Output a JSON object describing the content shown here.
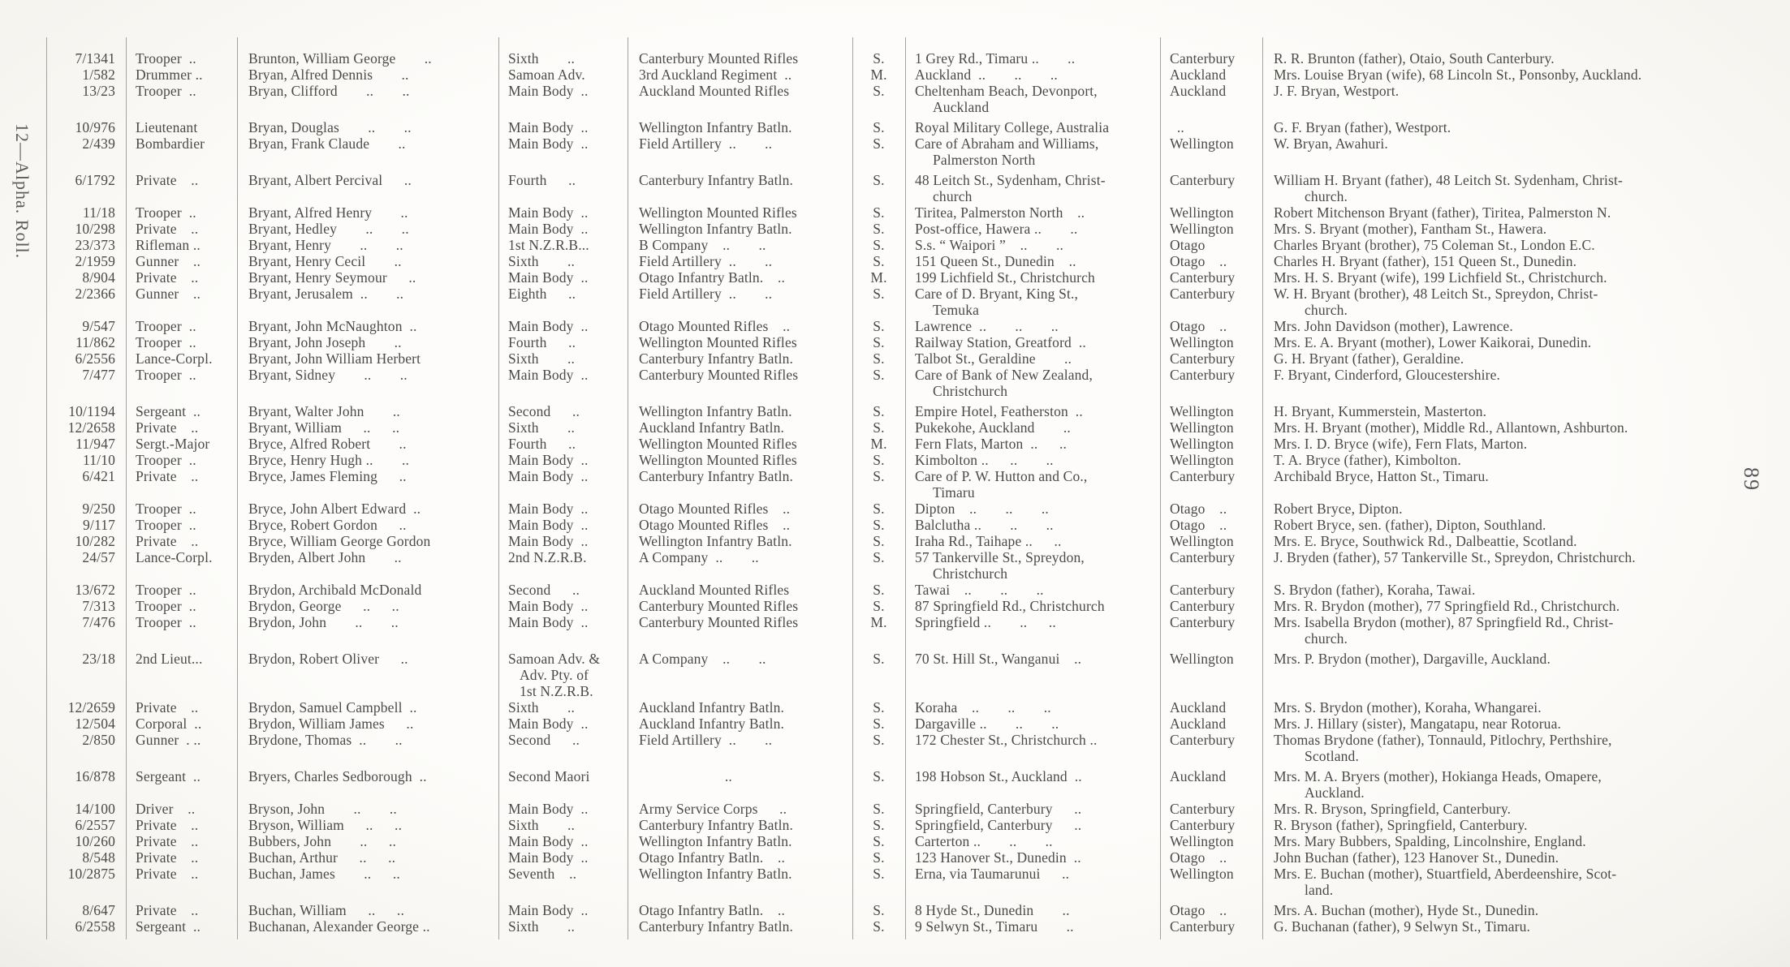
{
  "page": {
    "margin_label": "12—Alpha. Roll.",
    "page_number": "89",
    "colors": {
      "paper": "#fdfcfa",
      "ink": "#4a4a49",
      "rule": "#a3a3a0"
    }
  },
  "table": {
    "columns": [
      "number",
      "rank",
      "name",
      "draft",
      "unit",
      "status",
      "address",
      "district",
      "next_of_kin"
    ],
    "rows": [
      {
        "number": "7/1341",
        "rank": "Trooper ..",
        "name": "Brunton, William George  ..",
        "draft": "Sixth  ..",
        "unit": "Canterbury Mounted Rifles",
        "status": "S.",
        "address": "1 Grey Rd., Timaru ..  ..",
        "district": "Canterbury",
        "next_of_kin": "R. R. Brunton (father), Otaio, South Canterbury."
      },
      {
        "number": "1/582",
        "rank": "Drummer ..",
        "name": "Bryan, Alfred Dennis  ..",
        "draft": "Samoan Adv.",
        "unit": "3rd Auckland Regiment ..",
        "status": "M.",
        "address": "Auckland ..  ..  ..",
        "district": "Auckland",
        "next_of_kin": "Mrs. Louise Bryan (wife), 68 Lincoln St., Ponsonby, Auckland."
      },
      {
        "number": "13/23",
        "rank": "Trooper ..",
        "name": "Bryan, Clifford  ..  ..",
        "draft": "Main Body ..",
        "unit": "Auckland Mounted Rifles",
        "status": "S.",
        "address": "Cheltenham Beach, Devonport,\nAuckland",
        "district": "Auckland",
        "next_of_kin": "J. F. Bryan, Westport."
      },
      {
        "number": "10/976",
        "rank": "Lieutenant",
        "name": "Bryan, Douglas  ..  ..",
        "draft": "Main Body ..",
        "unit": "Wellington Infantry Batln.",
        "status": "S.",
        "address": "Royal Military College, Australia",
        "district": " ..",
        "next_of_kin": "G. F. Bryan (father), Westport.",
        "gap_before": true
      },
      {
        "number": "2/439",
        "rank": "Bombardier",
        "name": "Bryan, Frank Claude  ..",
        "draft": "Main Body ..",
        "unit": "Field Artillery ..  ..",
        "status": "S.",
        "address": "Care of Abraham and Williams,\nPalmerston North",
        "district": "Wellington",
        "next_of_kin": "W. Bryan, Awahuri."
      },
      {
        "number": "6/1792",
        "rank": "Private ..",
        "name": "Bryant, Albert Percival  ..",
        "draft": "Fourth  ..",
        "unit": "Canterbury Infantry Batln.",
        "status": "S.",
        "address": "48 Leitch St., Sydenham, Christ-\nchurch",
        "district": "Canterbury",
        "next_of_kin": "William H. Bryant (father), 48 Leitch St. Sydenham, Christ-\nchurch.",
        "gap_before": true
      },
      {
        "number": "11/18",
        "rank": "Trooper ..",
        "name": "Bryant, Alfred Henry  ..",
        "draft": "Main Body ..",
        "unit": "Wellington Mounted Rifles",
        "status": "S.",
        "address": "Tiritea, Palmerston North ..",
        "district": "Wellington",
        "next_of_kin": "Robert Mitchenson Bryant (father), Tiritea, Palmerston N."
      },
      {
        "number": "10/298",
        "rank": "Private ..",
        "name": "Bryant, Hedley  ..  ..",
        "draft": "Main Body ..",
        "unit": "Wellington Infantry Batln.",
        "status": "S.",
        "address": "Post-office, Hawera ..  ..",
        "district": "Wellington",
        "next_of_kin": "Mrs. S. Bryant (mother), Fantham St., Hawera."
      },
      {
        "number": "23/373",
        "rank": "Rifleman ..",
        "name": "Bryant, Henry  ..  ..",
        "draft": "1st N.Z.R.B...",
        "unit": "B Company ..  ..",
        "status": "S.",
        "address": "S.s. “ Waipori ” ..  ..",
        "district": "Otago",
        "next_of_kin": "Charles Bryant (brother), 75 Coleman St., London E.C."
      },
      {
        "number": "2/1959",
        "rank": "Gunner ..",
        "name": "Bryant, Henry Cecil  ..",
        "draft": "Sixth  ..",
        "unit": "Field Artillery ..  ..",
        "status": "S.",
        "address": "151 Queen St., Dunedin ..",
        "district": "Otago ..",
        "next_of_kin": "Charles H. Bryant (father), 151 Queen St., Dunedin."
      },
      {
        "number": "8/904",
        "rank": "Private ..",
        "name": "Bryant, Henry Seymour  ..",
        "draft": "Main Body ..",
        "unit": "Otago Infantry Batln. ..",
        "status": "M.",
        "address": "199 Lichfield St., Christchurch",
        "district": "Canterbury",
        "next_of_kin": "Mrs. H. S. Bryant (wife), 199 Lichfield St., Christchurch."
      },
      {
        "number": "2/2366",
        "rank": "Gunner ..",
        "name": "Bryant, Jerusalem ..  ..",
        "draft": "Eighth  ..",
        "unit": "Field Artillery ..  ..",
        "status": "S.",
        "address": "Care of D. Bryant, King St.,\nTemuka",
        "district": "Canterbury",
        "next_of_kin": "W. H. Bryant (brother), 48 Leitch St., Spreydon, Christ-\nchurch."
      },
      {
        "number": "9/547",
        "rank": "Trooper ..",
        "name": "Bryant, John McNaughton ..",
        "draft": "Main Body ..",
        "unit": "Otago Mounted Rifles ..",
        "status": "S.",
        "address": "Lawrence ..  ..  ..",
        "district": "Otago ..",
        "next_of_kin": "Mrs. John Davidson (mother), Lawrence."
      },
      {
        "number": "11/862",
        "rank": "Trooper ..",
        "name": "Bryant, John Joseph  ..",
        "draft": "Fourth  ..",
        "unit": "Wellington Mounted Rifles",
        "status": "S.",
        "address": "Railway Station, Greatford ..",
        "district": "Wellington",
        "next_of_kin": "Mrs. E. A. Bryant (mother), Lower Kaikorai, Dunedin."
      },
      {
        "number": "6/2556",
        "rank": "Lance-Corpl.",
        "name": "Bryant, John William Herbert",
        "draft": "Sixth  ..",
        "unit": "Canterbury Infantry Batln.",
        "status": "S.",
        "address": "Talbot St., Geraldine  ..",
        "district": "Canterbury",
        "next_of_kin": "G. H. Bryant (father), Geraldine."
      },
      {
        "number": "7/477",
        "rank": "Trooper ..",
        "name": "Bryant, Sidney  ..  ..",
        "draft": "Main Body ..",
        "unit": "Canterbury Mounted Rifles",
        "status": "S.",
        "address": "Care of Bank of New Zealand,\nChristchurch",
        "district": "Canterbury",
        "next_of_kin": "F. Bryant, Cinderford, Gloucestershire."
      },
      {
        "number": "10/1194",
        "rank": "Sergeant ..",
        "name": "Bryant, Walter John  ..",
        "draft": "Second  ..",
        "unit": "Wellington Infantry Batln.",
        "status": "S.",
        "address": "Empire Hotel, Featherston ..",
        "district": "Wellington",
        "next_of_kin": "H. Bryant, Kummerstein, Masterton.",
        "gap_before": true
      },
      {
        "number": "12/2658",
        "rank": "Private ..",
        "name": "Bryant, William  ..  ..",
        "draft": "Sixth  ..",
        "unit": "Auckland Infantry Batln.",
        "status": "S.",
        "address": "Pukekohe, Auckland  ..",
        "district": "Wellington",
        "next_of_kin": "Mrs. H. Bryant (mother), Middle Rd., Allantown, Ashburton."
      },
      {
        "number": "11/947",
        "rank": "Sergt.-Major",
        "name": "Bryce, Alfred Robert  ..",
        "draft": "Fourth  ..",
        "unit": "Wellington Mounted Rifles",
        "status": "M.",
        "address": "Fern Flats, Marton ..  ..",
        "district": "Wellington",
        "next_of_kin": "Mrs. I. D. Bryce (wife), Fern Flats, Marton."
      },
      {
        "number": "11/10",
        "rank": "Trooper ..",
        "name": "Bryce, Henry Hugh ..  ..",
        "draft": "Main Body ..",
        "unit": "Wellington Mounted Rifles",
        "status": "S.",
        "address": "Kimbolton ..  ..  ..",
        "district": "Wellington",
        "next_of_kin": "T. A. Bryce (father), Kimbolton."
      },
      {
        "number": "6/421",
        "rank": "Private ..",
        "name": "Bryce, James Fleming  ..",
        "draft": "Main Body ..",
        "unit": "Canterbury Infantry Batln.",
        "status": "S.",
        "address": "Care of P. W. Hutton and Co.,\nTimaru",
        "district": "Canterbury",
        "next_of_kin": "Archibald Bryce, Hatton St., Timaru."
      },
      {
        "number": "9/250",
        "rank": "Trooper ..",
        "name": "Bryce, John Albert Edward ..",
        "draft": "Main Body ..",
        "unit": "Otago Mounted Rifles ..",
        "status": "S.",
        "address": "Dipton ..  ..  ..",
        "district": "Otago ..",
        "next_of_kin": "Robert Bryce, Dipton."
      },
      {
        "number": "9/117",
        "rank": "Trooper ..",
        "name": "Bryce, Robert Gordon  ..",
        "draft": "Main Body ..",
        "unit": "Otago Mounted Rifles ..",
        "status": "S.",
        "address": "Balclutha ..  ..  ..",
        "district": "Otago ..",
        "next_of_kin": "Robert Bryce, sen. (father), Dipton, Southland."
      },
      {
        "number": "10/282",
        "rank": "Private ..",
        "name": "Bryce, William George Gordon",
        "draft": "Main Body ..",
        "unit": "Wellington Infantry Batln.",
        "status": "S.",
        "address": "Iraha Rd., Taihape ..  ..",
        "district": "Wellington",
        "next_of_kin": "Mrs. E. Bryce, Southwick Rd., Dalbeattie, Scotland."
      },
      {
        "number": "24/57",
        "rank": "Lance-Corpl.",
        "name": "Bryden, Albert John  ..",
        "draft": "2nd N.Z.R.B.",
        "unit": "A Company ..  ..",
        "status": "S.",
        "address": "57 Tankerville St., Spreydon,\nChristchurch",
        "district": "Canterbury",
        "next_of_kin": "J. Bryden (father), 57 Tankerville St., Spreydon, Christchurch."
      },
      {
        "number": "13/672",
        "rank": "Trooper ..",
        "name": "Brydon, Archibald McDonald",
        "draft": "Second  ..",
        "unit": "Auckland Mounted Rifles",
        "status": "S.",
        "address": "Tawai ..  ..  ..",
        "district": "Canterbury",
        "next_of_kin": "S. Brydon (father), Koraha, Tawai."
      },
      {
        "number": "7/313",
        "rank": "Trooper ..",
        "name": "Brydon, George  ..  ..",
        "draft": "Main Body ..",
        "unit": "Canterbury Mounted Rifles",
        "status": "S.",
        "address": "87 Springfield Rd., Christchurch",
        "district": "Canterbury",
        "next_of_kin": "Mrs. R. Brydon (mother), 77 Springfield Rd., Christchurch."
      },
      {
        "number": "7/476",
        "rank": "Trooper ..",
        "name": "Brydon, John  ..  ..",
        "draft": "Main Body ..",
        "unit": "Canterbury Mounted Rifles",
        "status": "M.",
        "address": "Springfield ..  ..  ..",
        "district": "Canterbury",
        "next_of_kin": "Mrs. Isabella Brydon (mother), 87 Springfield Rd., Christ-\nchurch."
      },
      {
        "number": "23/18",
        "rank": "2nd Lieut...",
        "name": "Brydon, Robert Oliver  ..",
        "draft": "Samoan Adv. &\nAdv. Pty. of\n1st N.Z.R.B.",
        "unit": "A Company ..  ..",
        "status": "S.",
        "address": "70 St. Hill St., Wanganui ..",
        "district": "Wellington",
        "next_of_kin": "Mrs. P. Brydon (mother), Dargaville, Auckland.",
        "gap_before": true
      },
      {
        "number": "12/2659",
        "rank": "Private ..",
        "name": "Brydon, Samuel Campbell ..",
        "draft": "Sixth  ..",
        "unit": "Auckland Infantry Batln.",
        "status": "S.",
        "address": "Koraha ..  ..  ..",
        "district": "Auckland",
        "next_of_kin": "Mrs. S. Brydon (mother), Koraha, Whangarei."
      },
      {
        "number": "12/504",
        "rank": "Corporal ..",
        "name": "Brydon, William James  ..",
        "draft": "Main Body ..",
        "unit": "Auckland Infantry Batln.",
        "status": "S.",
        "address": "Dargaville ..  ..  ..",
        "district": "Auckland",
        "next_of_kin": "Mrs. J. Hillary (sister), Mangatapu, near Rotorua."
      },
      {
        "number": "2/850",
        "rank": "Gunner . ..",
        "name": "Brydone, Thomas ..  ..",
        "draft": "Second  ..",
        "unit": "Field Artillery ..  ..",
        "status": "S.",
        "address": "172 Chester St., Christchurch ..",
        "district": "Canterbury",
        "next_of_kin": "Thomas Brydone (father), Tonnauld, Pitlochry, Perthshire,\nScotland."
      },
      {
        "number": "16/878",
        "rank": "Sergeant ..",
        "name": "Bryers, Charles Sedborough ..",
        "draft": "Second Maori",
        "unit": "      ..",
        "status": "S.",
        "address": "198 Hobson St., Auckland ..",
        "district": "Auckland",
        "next_of_kin": "Mrs. M. A. Bryers (mother), Hokianga Heads, Omapere,\nAuckland.",
        "gap_before": true
      },
      {
        "number": "14/100",
        "rank": "Driver ..",
        "name": "Bryson, John  ..  ..",
        "draft": "Main Body ..",
        "unit": "Army Service Corps  ..",
        "status": "S.",
        "address": "Springfield, Canterbury  ..",
        "district": "Canterbury",
        "next_of_kin": "Mrs. R. Bryson, Springfield, Canterbury."
      },
      {
        "number": "6/2557",
        "rank": "Private ..",
        "name": "Bryson, William  ..  ..",
        "draft": "Sixth  ..",
        "unit": "Canterbury Infantry Batln.",
        "status": "S.",
        "address": "Springfield, Canterbury  ..",
        "district": "Canterbury",
        "next_of_kin": "R. Bryson (father), Springfield, Canterbury."
      },
      {
        "number": "10/260",
        "rank": "Private ..",
        "name": "Bubbers, John  ..  ..",
        "draft": "Main Body ..",
        "unit": "Wellington Infantry Batln.",
        "status": "S.",
        "address": "Carterton ..  ..  ..",
        "district": "Wellington",
        "next_of_kin": "Mrs. Mary Bubbers, Spalding, Lincolnshire, England."
      },
      {
        "number": "8/548",
        "rank": "Private ..",
        "name": "Buchan, Arthur  ..  ..",
        "draft": "Main Body ..",
        "unit": "Otago Infantry Batln. ..",
        "status": "S.",
        "address": "123 Hanover St., Dunedin ..",
        "district": "Otago ..",
        "next_of_kin": "John Buchan (father), 123 Hanover St., Dunedin."
      },
      {
        "number": "10/2875",
        "rank": "Private ..",
        "name": "Buchan, James  ..  ..",
        "draft": "Seventh ..",
        "unit": "Wellington Infantry Batln.",
        "status": "S.",
        "address": "Erna, via Taumarunui  ..",
        "district": "Wellington",
        "next_of_kin": "Mrs. E. Buchan (mother), Stuartfield, Aberdeenshire, Scot-\nland."
      },
      {
        "number": "8/647",
        "rank": "Private ..",
        "name": "Buchan, William  ..  ..",
        "draft": "Main Body ..",
        "unit": "Otago Infantry Batln. ..",
        "status": "S.",
        "address": "8 Hyde St., Dunedin  ..",
        "district": "Otago ..",
        "next_of_kin": "Mrs. A. Buchan (mother), Hyde St., Dunedin.",
        "gap_before": true
      },
      {
        "number": "6/2558",
        "rank": "Sergeant ..",
        "name": "Buchanan, Alexander George ..",
        "draft": "Sixth  ..",
        "unit": "Canterbury Infantry Batln.",
        "status": "S.",
        "address": "9 Selwyn St., Timaru  ..",
        "district": "Canterbury",
        "next_of_kin": "G. Buchanan (father), 9 Selwyn St., Timaru."
      }
    ]
  }
}
